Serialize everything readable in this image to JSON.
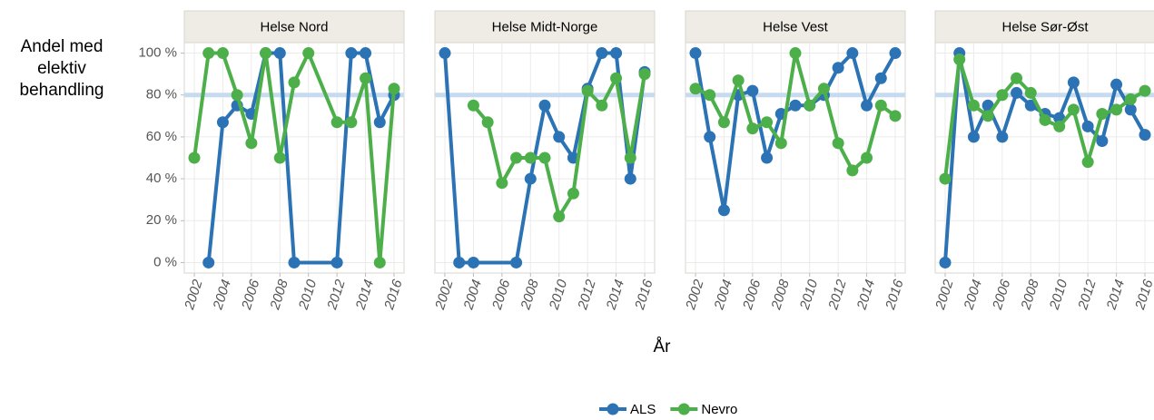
{
  "chart_data": [
    {
      "type": "line",
      "title": "Helse Nord",
      "ylabel": "Andel med elektiv behandling",
      "xlabel": "År",
      "xlim": [
        2001.3,
        2016.7
      ],
      "ylim": [
        -5,
        105
      ],
      "xticks": [
        2002,
        2004,
        2006,
        2008,
        2010,
        2012,
        2014,
        2016
      ],
      "yticks": [
        {
          "value": 0,
          "label": "0 %"
        },
        {
          "value": 20,
          "label": "20 %"
        },
        {
          "value": 40,
          "label": "40 %"
        },
        {
          "value": 60,
          "label": "60 %"
        },
        {
          "value": 80,
          "label": "80 %"
        },
        {
          "value": 100,
          "label": "100 %"
        }
      ],
      "hline": 80,
      "hline_color": "#c6dbef",
      "grid": true,
      "series": [
        {
          "name": "ALS",
          "color": "#2b73b4",
          "x": [
            2003,
            2004,
            2005,
            2006,
            2007,
            2008,
            2009,
            2012,
            2013,
            2014,
            2015,
            2016
          ],
          "values": [
            0,
            67,
            75,
            71,
            100,
            100,
            0,
            0,
            100,
            100,
            67,
            80
          ]
        },
        {
          "name": "Nevro",
          "color": "#4daf4a",
          "x": [
            2002,
            2003,
            2004,
            2005,
            2006,
            2007,
            2008,
            2009,
            2010,
            2012,
            2013,
            2014,
            2015,
            2016
          ],
          "values": [
            50,
            100,
            100,
            80,
            57,
            100,
            50,
            86,
            100,
            67,
            67,
            88,
            0,
            83
          ]
        }
      ]
    },
    {
      "type": "line",
      "title": "Helse Midt-Norge",
      "xlim": [
        2001.3,
        2016.7
      ],
      "ylim": [
        -5,
        105
      ],
      "xticks": [
        2002,
        2004,
        2006,
        2008,
        2010,
        2012,
        2014,
        2016
      ],
      "hline": 80,
      "hline_color": "#c6dbef",
      "grid": true,
      "series": [
        {
          "name": "ALS",
          "color": "#2b73b4",
          "x": [
            2002,
            2003,
            2004,
            2007,
            2008,
            2009,
            2010,
            2011,
            2012,
            2013,
            2014,
            2015,
            2016
          ],
          "values": [
            100,
            0,
            0,
            0,
            40,
            75,
            60,
            50,
            83,
            100,
            100,
            40,
            91
          ]
        },
        {
          "name": "Nevro",
          "color": "#4daf4a",
          "x": [
            2004,
            2005,
            2006,
            2007,
            2008,
            2009,
            2010,
            2011,
            2012,
            2013,
            2014,
            2015,
            2016
          ],
          "values": [
            75,
            67,
            38,
            50,
            50,
            50,
            22,
            33,
            82,
            75,
            88,
            50,
            90
          ]
        }
      ]
    },
    {
      "type": "line",
      "title": "Helse Vest",
      "xlim": [
        2001.3,
        2016.7
      ],
      "ylim": [
        -5,
        105
      ],
      "xticks": [
        2002,
        2004,
        2006,
        2008,
        2010,
        2012,
        2014,
        2016
      ],
      "hline": 80,
      "hline_color": "#c6dbef",
      "grid": true,
      "series": [
        {
          "name": "ALS",
          "color": "#2b73b4",
          "x": [
            2002,
            2003,
            2004,
            2005,
            2006,
            2007,
            2008,
            2009,
            2010,
            2011,
            2012,
            2013,
            2014,
            2015,
            2016
          ],
          "values": [
            100,
            60,
            25,
            80,
            82,
            50,
            71,
            75,
            75,
            80,
            93,
            100,
            75,
            88,
            100
          ]
        },
        {
          "name": "Nevro",
          "color": "#4daf4a",
          "x": [
            2002,
            2003,
            2004,
            2005,
            2006,
            2007,
            2008,
            2009,
            2010,
            2011,
            2012,
            2013,
            2014,
            2015,
            2016
          ],
          "values": [
            83,
            80,
            67,
            87,
            64,
            67,
            57,
            100,
            75,
            83,
            57,
            44,
            50,
            75,
            70
          ]
        }
      ]
    },
    {
      "type": "line",
      "title": "Helse Sør-Øst",
      "xlim": [
        2001.3,
        2016.7
      ],
      "ylim": [
        -5,
        105
      ],
      "xticks": [
        2002,
        2004,
        2006,
        2008,
        2010,
        2012,
        2014,
        2016
      ],
      "hline": 80,
      "hline_color": "#c6dbef",
      "grid": true,
      "series": [
        {
          "name": "ALS",
          "color": "#2b73b4",
          "x": [
            2002,
            2003,
            2004,
            2005,
            2006,
            2007,
            2008,
            2009,
            2010,
            2011,
            2012,
            2013,
            2014,
            2015,
            2016
          ],
          "values": [
            0,
            100,
            60,
            75,
            60,
            81,
            75,
            71,
            69,
            86,
            65,
            58,
            85,
            73,
            61
          ]
        },
        {
          "name": "Nevro",
          "color": "#4daf4a",
          "x": [
            2002,
            2003,
            2004,
            2005,
            2006,
            2007,
            2008,
            2009,
            2010,
            2011,
            2012,
            2013,
            2014,
            2015,
            2016
          ],
          "values": [
            40,
            97,
            75,
            70,
            80,
            88,
            81,
            68,
            65,
            73,
            48,
            71,
            73,
            78,
            82
          ]
        }
      ]
    }
  ]
}
